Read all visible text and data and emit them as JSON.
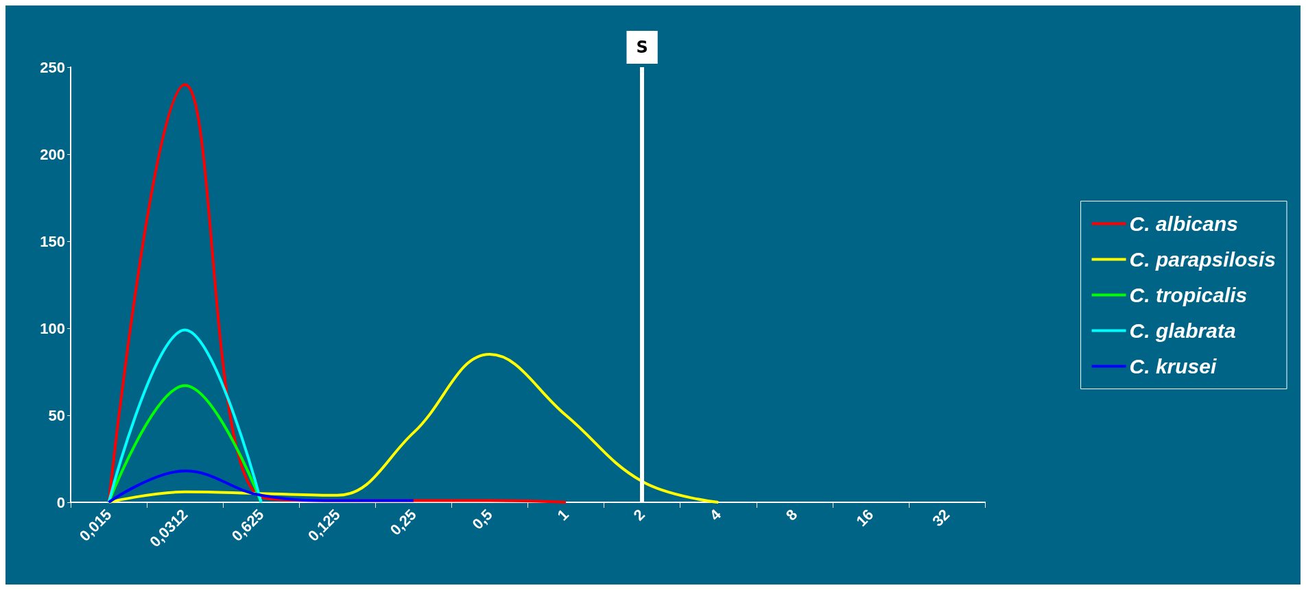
{
  "chart_data": {
    "type": "line",
    "categories": [
      "0,015",
      "0,0312",
      "0,625",
      "0,125",
      "0,25",
      "0,5",
      "1",
      "2",
      "4",
      "8",
      "16",
      "32"
    ],
    "series": [
      {
        "name": "C. albicans",
        "color": "#ff0000",
        "values": [
          0,
          240,
          3,
          1,
          1,
          1,
          0,
          null,
          null,
          null,
          null,
          null
        ]
      },
      {
        "name": "C. parapsilosis",
        "color": "#ffff00",
        "values": [
          0,
          6,
          5,
          4,
          40,
          85,
          50,
          12,
          0,
          null,
          null,
          null
        ]
      },
      {
        "name": "C. tropicalis",
        "color": "#00ff00",
        "values": [
          0,
          67,
          0,
          null,
          null,
          null,
          null,
          null,
          null,
          null,
          null,
          null
        ]
      },
      {
        "name": "C. glabrata",
        "color": "#00ffff",
        "values": [
          0,
          99,
          0,
          null,
          null,
          null,
          null,
          null,
          null,
          null,
          null,
          null
        ]
      },
      {
        "name": "C. krusei",
        "color": "#0000ff",
        "values": [
          0,
          18,
          4,
          1,
          1,
          null,
          null,
          null,
          null,
          null,
          null,
          null
        ]
      }
    ],
    "ylim": [
      0,
      250
    ],
    "yticks": [
      0,
      50,
      100,
      150,
      200,
      250
    ],
    "grid": false,
    "legend": "right",
    "marker": "none",
    "line_style": "solid",
    "ref_lines": [
      {
        "axis": "x",
        "value": "2",
        "label": "S",
        "color": "#ffffff"
      }
    ]
  }
}
